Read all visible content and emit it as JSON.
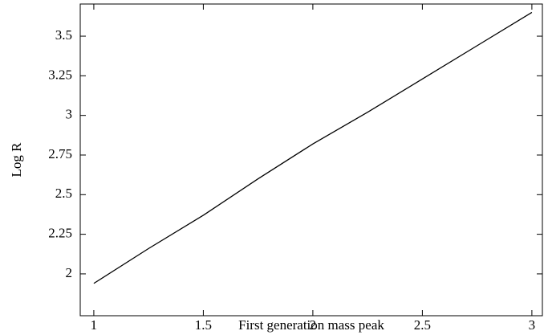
{
  "chart_data": {
    "type": "line",
    "x_label": "First generation mass peak",
    "y_label": "Log R",
    "x": [
      1,
      1.25,
      1.5,
      1.75,
      2,
      2.25,
      2.5,
      2.75,
      3
    ],
    "series": [
      {
        "color": "#000000",
        "values": [
          1.94,
          2.16,
          2.37,
          2.6,
          2.82,
          3.02,
          3.23,
          3.44,
          3.65
        ]
      }
    ],
    "xlim": [
      0.938,
      3.048
    ],
    "ylim": [
      1.736,
      3.703
    ],
    "xticks": [
      1,
      1.5,
      2,
      2.5,
      3
    ],
    "yticks": [
      2,
      2.25,
      2.5,
      2.75,
      3,
      3.25,
      3.5
    ]
  }
}
